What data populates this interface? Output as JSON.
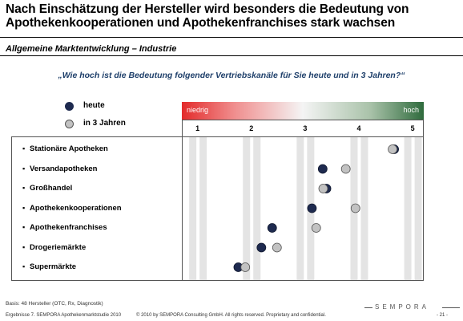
{
  "title": "Nach Einschätzung der Hersteller wird besonders die Bedeutung von Apothekenkooperationen und Apothekenfranchises stark wachsen",
  "subtitle": "Allgemeine Marktentwicklung – Industrie",
  "question": "„Wie hoch ist die Bedeutung folgender Vertriebskanäle für Sie heute und in 3 Jahren?“",
  "colors": {
    "heute": "#1e2a4f",
    "in_3_jahren": "#c2c2c2",
    "scale_low": "#e32b2b",
    "scale_high": "#2f6b3d"
  },
  "chart_data": {
    "type": "scatter",
    "title": "",
    "scale_low_label": "niedrig",
    "scale_high_label": "hoch",
    "x_ticks": [
      "1",
      "2",
      "3",
      "4",
      "5"
    ],
    "xlim": [
      0.7,
      5.2
    ],
    "categories": [
      "Stationäre Apotheken",
      "Versandapotheken",
      "Großhandel",
      "Apothekenkooperationen",
      "Apothekenfranchises",
      "Drogeriemärkte",
      "Supermärkte"
    ],
    "series": [
      {
        "name": "heute",
        "values": [
          4.65,
          3.32,
          3.39,
          3.12,
          2.38,
          2.18,
          1.75
        ]
      },
      {
        "name": "in 3 Jahren",
        "values": [
          4.62,
          3.75,
          3.33,
          3.93,
          3.2,
          2.47,
          1.88
        ]
      }
    ],
    "legend": "top-left"
  },
  "footer": {
    "basis": "Basis: 48 Hersteller (OTC, Rx, Diagnostik)",
    "left": "Ergebnisse 7. SEMPORA Apothekenmarktstudie 2010",
    "center": "© 2010 by SEMPORA Consulting GmbH. All rights reserved. Proprietary and confidential.",
    "page": "- 21 -",
    "logo": "SEMPORA"
  }
}
